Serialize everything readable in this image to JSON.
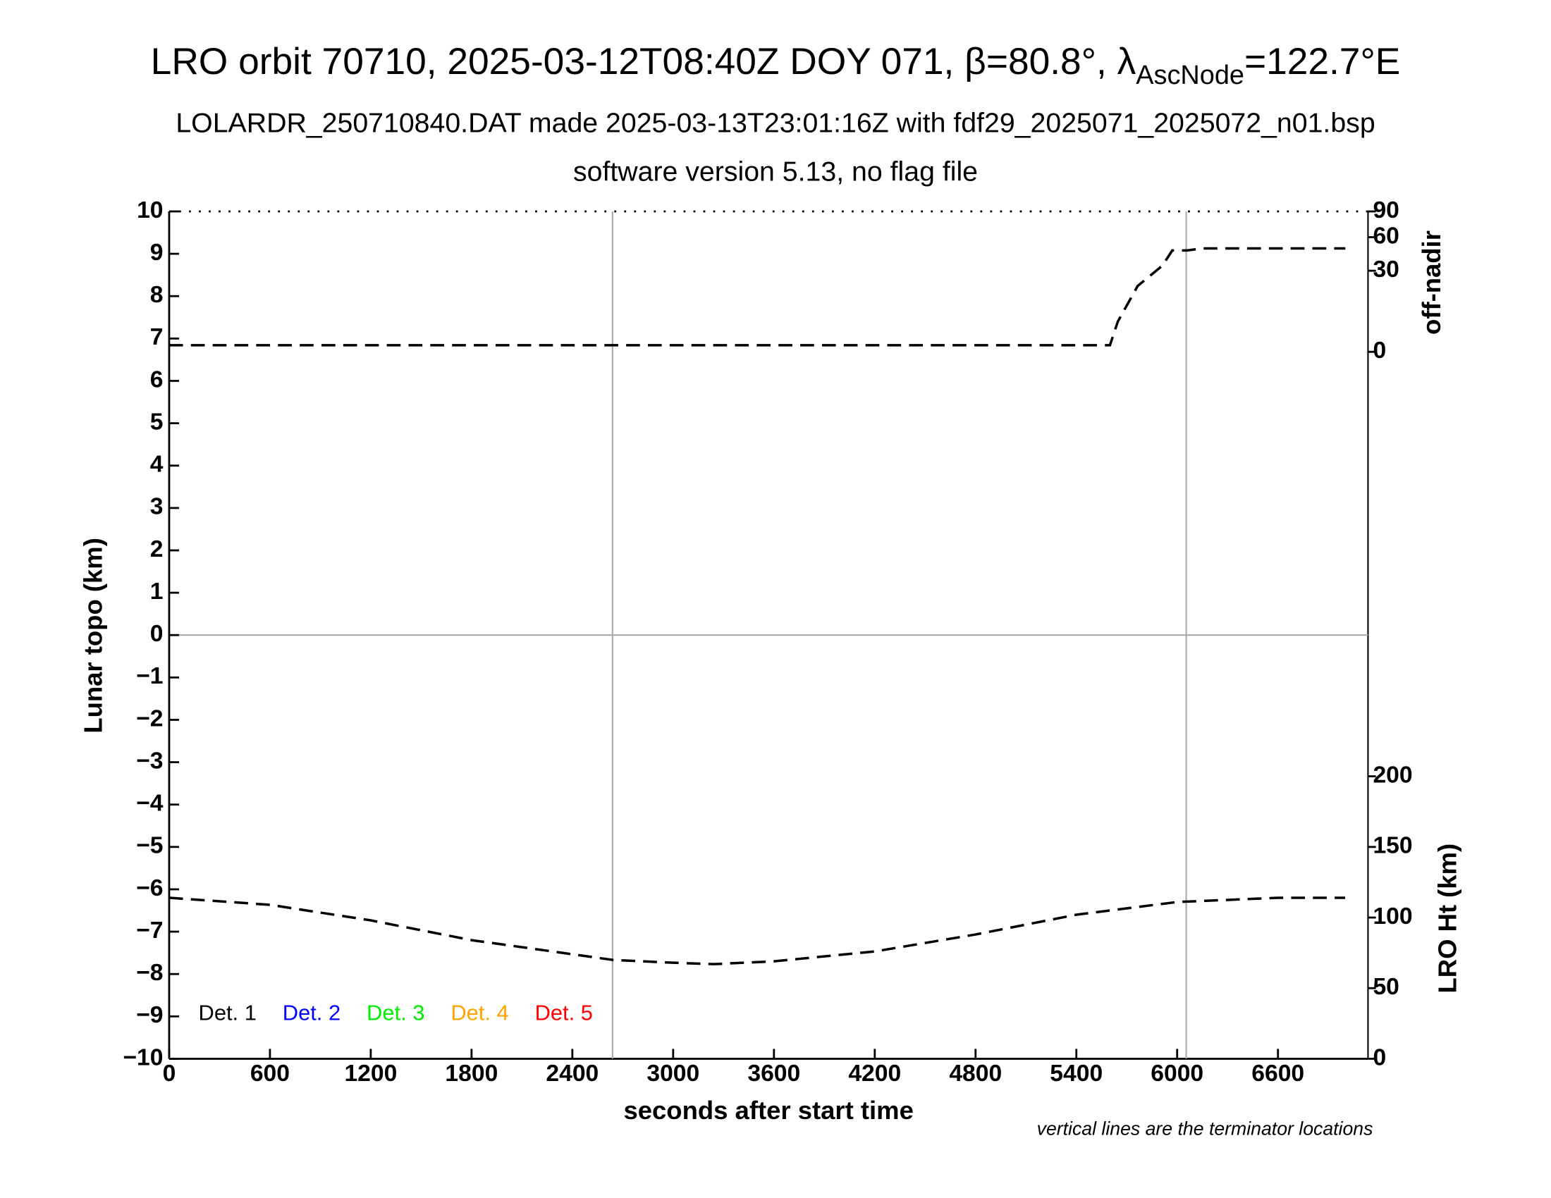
{
  "chart_data": {
    "type": "line",
    "title": "LRO orbit 70710, 2025-03-12T08:40Z DOY 071, β=80.8°, λ",
    "title_subscript": "AscNode",
    "title_suffix": "=122.7°E",
    "subtitle": "LOLARDR_250710840.DAT made 2025-03-13T23:01:16Z with fdf29_2025071_2025072_n01.bsp",
    "subtitle2": "software version 5.13, no flag file",
    "xlabel": "seconds after start time",
    "ylabel": "Lunar topo (km)",
    "y2label": "off-nadir",
    "y3label": "LRO Ht (km)",
    "note": "vertical lines are the terminator locations",
    "xlim": [
      0,
      7136
    ],
    "xticks": [
      0,
      600,
      1200,
      1800,
      2400,
      3000,
      3600,
      4200,
      4800,
      5400,
      6000,
      6600
    ],
    "ylim": [
      -10,
      10
    ],
    "yticks": [
      {
        "value": -10,
        "label": "−10"
      },
      {
        "value": -9,
        "label": "−9"
      },
      {
        "value": -8,
        "label": "−8"
      },
      {
        "value": -7,
        "label": "−7"
      },
      {
        "value": -6,
        "label": "−6"
      },
      {
        "value": -5,
        "label": "−5"
      },
      {
        "value": -4,
        "label": "−4"
      },
      {
        "value": -3,
        "label": "−3"
      },
      {
        "value": -2,
        "label": "−2"
      },
      {
        "value": -1,
        "label": "−1"
      },
      0,
      1,
      2,
      3,
      4,
      5,
      6,
      7,
      8,
      9,
      10
    ],
    "y2lim": [
      0,
      90
    ],
    "y2scale": "sqrt",
    "y2ticks": [
      0,
      30,
      60,
      90
    ],
    "y3lim": [
      0,
      600
    ],
    "y3ticks": [
      0,
      50,
      100,
      150,
      200
    ],
    "zero_line": 0,
    "terminators": [
      2639,
      6054
    ],
    "detectors": [
      {
        "name": "Det. 1",
        "color": "#000000"
      },
      {
        "name": "Det. 2",
        "color": "#0000ff"
      },
      {
        "name": "Det. 3",
        "color": "#00ee00"
      },
      {
        "name": "Det. 4",
        "color": "#ffa500"
      },
      {
        "name": "Det. 5",
        "color": "#ff0000"
      }
    ],
    "series": [
      {
        "axis": "y2",
        "color": "#000000",
        "dash": true,
        "x": [
          0,
          600,
          1200,
          1800,
          2400,
          3000,
          3600,
          4200,
          4800,
          5400,
          5600,
          5647,
          5765,
          5912,
          5971,
          6059,
          6147,
          6600,
          7001
        ],
        "values": [
          0.2,
          0.2,
          0.2,
          0.2,
          0.2,
          0.2,
          0.2,
          0.2,
          0.2,
          0.2,
          0.2,
          4.2,
          19.8,
          33.9,
          46.9,
          46.9,
          48.8,
          48.8,
          48.8
        ]
      },
      {
        "axis": "y3",
        "color": "#000000",
        "dash": true,
        "x": [
          0,
          600,
          1200,
          1800,
          2400,
          2640,
          3000,
          3240,
          3600,
          4200,
          4800,
          5400,
          6000,
          6600,
          7000
        ],
        "values": [
          114,
          109,
          98,
          84,
          74,
          70,
          68,
          67,
          69,
          76,
          88,
          102,
          111,
          114,
          114
        ]
      }
    ]
  }
}
